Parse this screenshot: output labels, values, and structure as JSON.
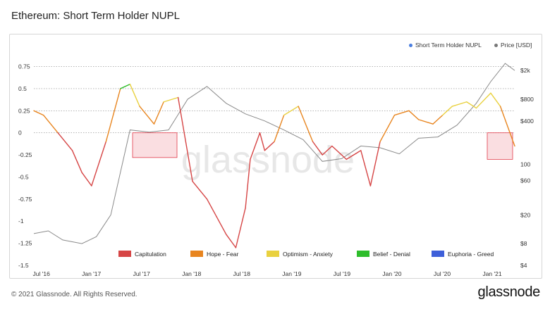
{
  "title": "Ethereum: Short Term Holder NUPL",
  "footer": {
    "copyright": "© 2021 Glassnode. All Rights Reserved.",
    "brand": "glassnode"
  },
  "watermark": "glassnode",
  "legend_top": [
    {
      "label": "Short Term Holder NUPL",
      "color": "#4a7ee0"
    },
    {
      "label": "Price [USD]",
      "color": "#777777"
    }
  ],
  "chart_data": {
    "type": "line",
    "title": "Ethereum: Short Term Holder NUPL",
    "x_ticks": [
      "Jul '16",
      "Jan '17",
      "Jul '17",
      "Jan '18",
      "Jul '18",
      "Jan '19",
      "Jul '19",
      "Jan '20",
      "Jul '20",
      "Jan '21"
    ],
    "y_left_ticks": [
      "0.75",
      "0.5",
      "0.25",
      "0",
      "-0.25",
      "-0.5",
      "-0.75",
      "-1",
      "-1.25",
      "-1.5"
    ],
    "y_left_values": [
      0.75,
      0.5,
      0.25,
      0,
      -0.25,
      -0.5,
      -0.75,
      -1,
      -1.25,
      -1.5
    ],
    "y_right_ticks": [
      "$2k",
      "$800",
      "$400",
      "100",
      "$60",
      "$20",
      "$8",
      "$4"
    ],
    "y_right_values": [
      2000,
      800,
      400,
      100,
      60,
      20,
      8,
      4
    ],
    "ylim_left": [
      -1.5,
      0.85
    ],
    "y_right_scale": "log",
    "zones": [
      {
        "name": "Capitulation",
        "color": "#d64545",
        "max": 0
      },
      {
        "name": "Hope - Fear",
        "color": "#e8851f",
        "max": 0.25
      },
      {
        "name": "Optimism - Anxiety",
        "color": "#e9d13f",
        "max": 0.5
      },
      {
        "name": "Belief - Denial",
        "color": "#2ebd2b",
        "max": 0.75
      },
      {
        "name": "Euphoria - Greed",
        "color": "#3e5fd9",
        "max": 1.0
      }
    ],
    "nupl_series": {
      "name": "Short Term Holder NUPL",
      "t": [
        0,
        0.02,
        0.05,
        0.08,
        0.1,
        0.12,
        0.15,
        0.18,
        0.2,
        0.22,
        0.25,
        0.27,
        0.3,
        0.33,
        0.36,
        0.38,
        0.4,
        0.42,
        0.44,
        0.45,
        0.47,
        0.48,
        0.5,
        0.52,
        0.55,
        0.58,
        0.6,
        0.62,
        0.65,
        0.68,
        0.7,
        0.72,
        0.75,
        0.78,
        0.8,
        0.83,
        0.85,
        0.87,
        0.9,
        0.92,
        0.95,
        0.97,
        1.0
      ],
      "v": [
        0.25,
        0.2,
        0.0,
        -0.2,
        -0.45,
        -0.6,
        -0.1,
        0.5,
        0.55,
        0.3,
        0.1,
        0.35,
        0.4,
        -0.55,
        -0.75,
        -0.95,
        -1.15,
        -1.3,
        -0.85,
        -0.3,
        0.0,
        -0.2,
        -0.1,
        0.2,
        0.3,
        -0.1,
        -0.25,
        -0.15,
        -0.3,
        -0.2,
        -0.6,
        -0.1,
        0.2,
        0.25,
        0.15,
        0.1,
        0.2,
        0.3,
        0.35,
        0.28,
        0.45,
        0.3,
        -0.15
      ]
    },
    "price_series": {
      "name": "Price [USD]",
      "t": [
        0,
        0.03,
        0.06,
        0.1,
        0.13,
        0.16,
        0.2,
        0.24,
        0.28,
        0.32,
        0.36,
        0.4,
        0.44,
        0.48,
        0.52,
        0.56,
        0.6,
        0.64,
        0.68,
        0.72,
        0.76,
        0.8,
        0.84,
        0.88,
        0.92,
        0.95,
        0.98,
        1.0
      ],
      "v": [
        11,
        12,
        9,
        8,
        10,
        20,
        300,
        280,
        300,
        800,
        1200,
        700,
        500,
        400,
        300,
        220,
        110,
        120,
        180,
        170,
        140,
        230,
        240,
        350,
        700,
        1400,
        2500,
        2000
      ]
    }
  }
}
